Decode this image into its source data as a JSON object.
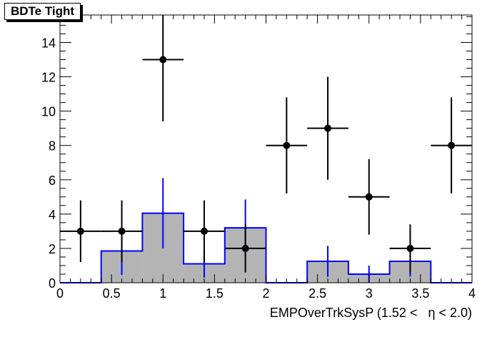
{
  "chart_data": {
    "type": "bar",
    "title": "BDTe Tight",
    "xlabel": "EMPOverTrkSysP (1.52 <   η < 2.0)",
    "ylabel": "",
    "xlim": [
      0,
      4
    ],
    "ylim": [
      0,
      15.6
    ],
    "x_tick_labels": [
      "0",
      "0.5",
      "1",
      "1.5",
      "2",
      "2.5",
      "3",
      "3.5",
      "4"
    ],
    "y_tick_labels": [
      "0",
      "2",
      "4",
      "6",
      "8",
      "10",
      "12",
      "14"
    ],
    "grid": false,
    "legend": "none",
    "series": [
      {
        "kind": "histogram",
        "color": "#0000ff",
        "fill": "#b4b4b4",
        "bin_edges": [
          0,
          0.4,
          0.8,
          1.2,
          1.6,
          2.0,
          2.4,
          2.8,
          3.2,
          3.6,
          4.0
        ],
        "values": [
          0,
          1.85,
          4.05,
          1.1,
          3.2,
          0,
          1.25,
          0.5,
          1.25,
          0
        ],
        "errors": [
          0,
          1.4,
          2.05,
          0.8,
          1.65,
          0,
          0.9,
          0.5,
          0.9,
          0
        ]
      },
      {
        "kind": "points",
        "color": "#000000",
        "x": [
          0.2,
          0.6,
          1.0,
          1.4,
          1.8,
          2.2,
          2.6,
          3.0,
          3.4,
          3.8
        ],
        "x_half_width": 0.2,
        "y": [
          3,
          3,
          13,
          3,
          2,
          8,
          9,
          5,
          2,
          8
        ],
        "y_err_low": [
          1.8,
          1.8,
          3.6,
          1.8,
          1.4,
          2.8,
          3.0,
          2.2,
          1.4,
          2.8
        ],
        "y_err_high": [
          1.8,
          1.8,
          3.6,
          1.8,
          1.4,
          2.8,
          3.0,
          2.2,
          1.4,
          2.8
        ]
      }
    ]
  }
}
